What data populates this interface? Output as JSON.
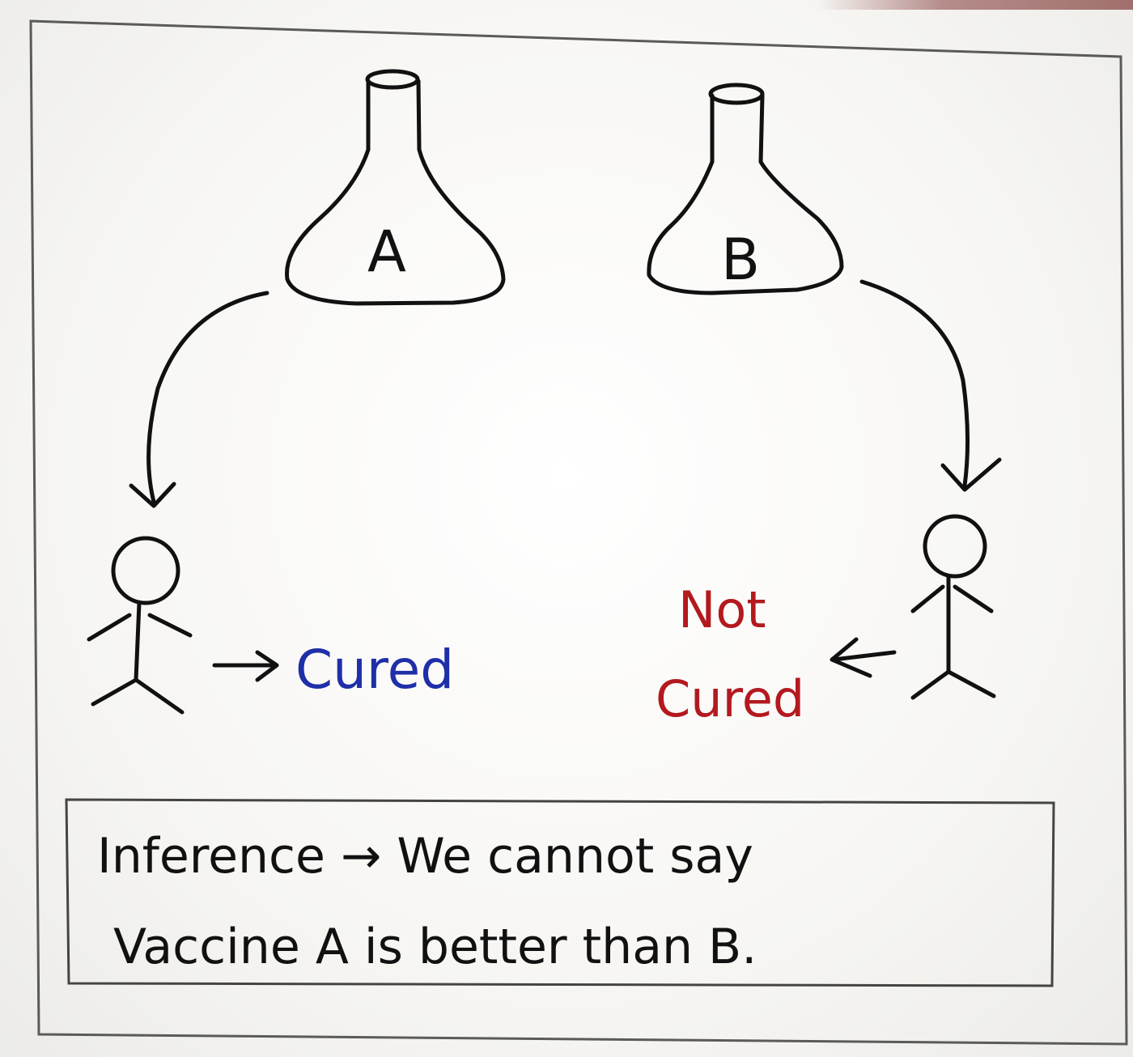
{
  "flask_a": {
    "label": "A"
  },
  "flask_b": {
    "label": "B"
  },
  "outcome_a": {
    "label": "Cured",
    "color": "#1f2fa8"
  },
  "outcome_b": {
    "line1": "Not",
    "line2": "Cured",
    "color": "#b3191f"
  },
  "inference": {
    "line1": "Inference → We cannot say",
    "line2": "Vaccine A is better than B."
  },
  "colors": {
    "ink": "#111111",
    "paper": "#ffffff",
    "border": "#555555"
  }
}
